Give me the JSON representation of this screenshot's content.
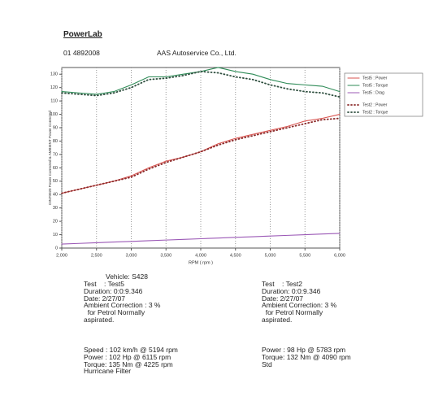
{
  "header": {
    "title": "PowerLab",
    "code": "01 4892008",
    "company": "AAS Autoservice Co., Ltd."
  },
  "chart_data": {
    "type": "line",
    "y_label": "DIN70020 Power Corrected & AMBIENT Power Corrected",
    "x_label": "RPM ( rpm )",
    "x": [
      2000,
      2250,
      2500,
      2750,
      3000,
      3250,
      3500,
      3750,
      4000,
      4250,
      4500,
      4750,
      5000,
      5250,
      5500,
      5750,
      6000
    ],
    "series": [
      {
        "name": "Test5 : Power",
        "color": "#d9534f",
        "style": "solid",
        "values": [
          41,
          44,
          47,
          50,
          54,
          60,
          65,
          68,
          72,
          78,
          82,
          85,
          88,
          91,
          95,
          97,
          100
        ]
      },
      {
        "name": "Test5 : Torque",
        "color": "#2e8b57",
        "style": "solid",
        "values": [
          117,
          116,
          115,
          117,
          122,
          128,
          128,
          130,
          132,
          135,
          132,
          130,
          126,
          123,
          122,
          121,
          117
        ]
      },
      {
        "name": "Test5 : Drag",
        "color": "#9b59b6",
        "style": "solid",
        "values": [
          3,
          3.5,
          4,
          4.5,
          5,
          5.5,
          6,
          6.5,
          7,
          7.5,
          8,
          8.5,
          9,
          9.5,
          10,
          10.5,
          11
        ]
      },
      {
        "name": "Test2 : Power",
        "color": "#8b2a2a",
        "style": "dotted",
        "values": [
          41,
          44,
          47,
          50,
          53,
          59,
          64,
          68,
          72,
          77,
          81,
          84,
          87,
          90,
          93,
          96,
          97
        ]
      },
      {
        "name": "Test2 : Torque",
        "color": "#2f4f3f",
        "style": "dotted",
        "values": [
          116,
          115,
          114,
          116,
          120,
          126,
          127,
          129,
          132,
          131,
          128,
          126,
          122,
          119,
          117,
          116,
          113
        ]
      }
    ],
    "xlim": [
      2000,
      6000
    ],
    "xticks": [
      {
        "value": 2000,
        "label": "2,000"
      },
      {
        "value": 2500,
        "label": "2,500"
      },
      {
        "value": 3000,
        "label": "3,000"
      },
      {
        "value": 3500,
        "label": "3,500"
      },
      {
        "value": 4000,
        "label": "4,000"
      },
      {
        "value": 4500,
        "label": "4,500"
      },
      {
        "value": 5000,
        "label": "5,000"
      },
      {
        "value": 5500,
        "label": "5,500"
      },
      {
        "value": 6000,
        "label": "6,000"
      }
    ],
    "ylim": [
      0,
      135
    ],
    "yticks": [
      0,
      10,
      20,
      30,
      40,
      50,
      60,
      70,
      80,
      90,
      100,
      110,
      120,
      130
    ],
    "grid": "x",
    "legend": "right"
  },
  "vehicle": "Vehicle: S428",
  "left": {
    "lines": [
      "Test    : Test5",
      "Duration: 0:0:9.346",
      "Date: 2/27/07",
      "Ambient Correction : 3 %",
      "  for Petrol Normally",
      "aspirated."
    ],
    "results": [
      "Speed : 102 km/h @ 5194 rpm",
      "Power : 102 Hp @ 6115 rpm",
      "Torque: 135 Nm @ 4225 rpm",
      "Hurricane Filter"
    ]
  },
  "right": {
    "lines": [
      "Test    : Test2",
      "Duration: 0:0:9.346",
      "Date: 2/27/07",
      "Ambient Correction: 3 %",
      "  for Petrol Normally",
      "aspirated."
    ],
    "results": [
      "Power : 98 Hp @ 5783 rpm",
      "Torque: 132 Nm @ 4090 rpm",
      "Std"
    ]
  }
}
